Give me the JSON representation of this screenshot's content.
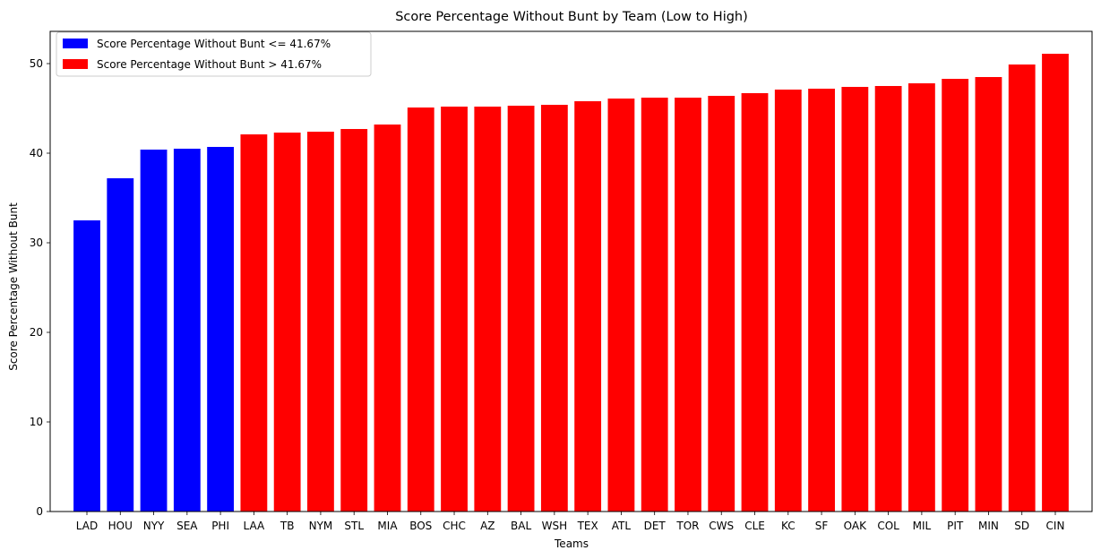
{
  "chart_data": {
    "type": "bar",
    "title": "Score Percentage Without Bunt by Team (Low to High)",
    "xlabel": "Teams",
    "ylabel": "Score Percentage Without Bunt",
    "ylim": [
      0,
      53.6
    ],
    "yticks": [
      0,
      10,
      20,
      30,
      40,
      50
    ],
    "grid": false,
    "legend_position": "top-left",
    "threshold": 41.67,
    "categories": [
      "LAD",
      "HOU",
      "NYY",
      "SEA",
      "PHI",
      "LAA",
      "TB",
      "NYM",
      "STL",
      "MIA",
      "BOS",
      "CHC",
      "AZ",
      "BAL",
      "WSH",
      "TEX",
      "ATL",
      "DET",
      "TOR",
      "CWS",
      "CLE",
      "KC",
      "SF",
      "OAK",
      "COL",
      "MIL",
      "PIT",
      "MIN",
      "SD",
      "CIN"
    ],
    "values": [
      32.5,
      37.2,
      40.4,
      40.5,
      40.7,
      42.1,
      42.3,
      42.4,
      42.7,
      43.2,
      45.1,
      45.2,
      45.2,
      45.3,
      45.4,
      45.8,
      46.1,
      46.2,
      46.2,
      46.4,
      46.7,
      47.1,
      47.2,
      47.4,
      47.5,
      47.8,
      48.3,
      48.5,
      49.9,
      51.1
    ],
    "series": [
      {
        "name": "Score Percentage Without Bunt <= 41.67%",
        "color": "#0000ff"
      },
      {
        "name": "Score Percentage Without Bunt > 41.67%",
        "color": "#ff0000"
      }
    ]
  }
}
